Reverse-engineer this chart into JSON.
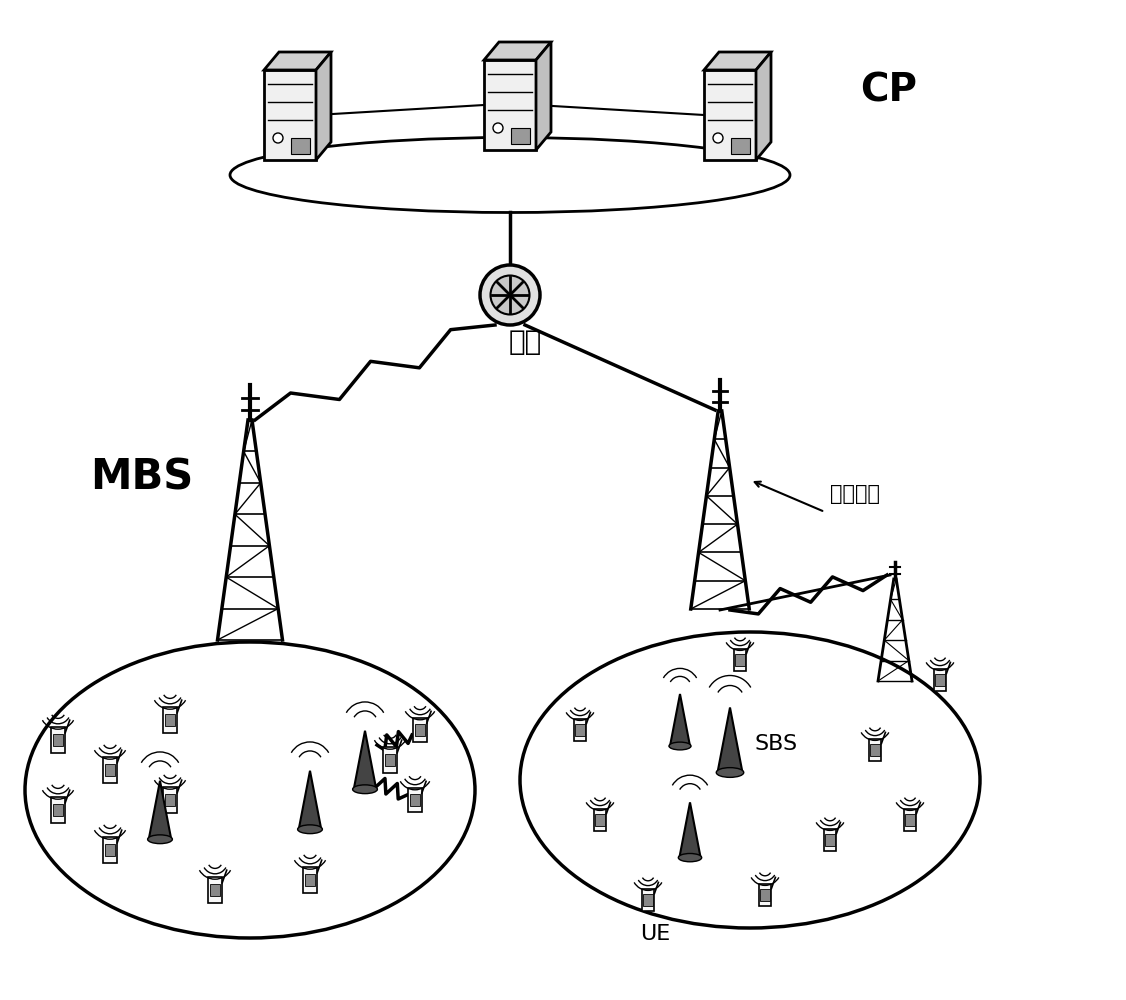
{
  "bg_color": "#ffffff",
  "text_color": "#000000",
  "labels": {
    "CP": "CP",
    "gateway": "网关",
    "MBS": "MBS",
    "SBS": "SBS",
    "UE": "UE",
    "comm_link": "通信链路"
  },
  "font_sizes": {
    "CP": 28,
    "gateway": 20,
    "MBS": 30,
    "SBS": 16,
    "UE": 16,
    "comm_link": 15
  }
}
